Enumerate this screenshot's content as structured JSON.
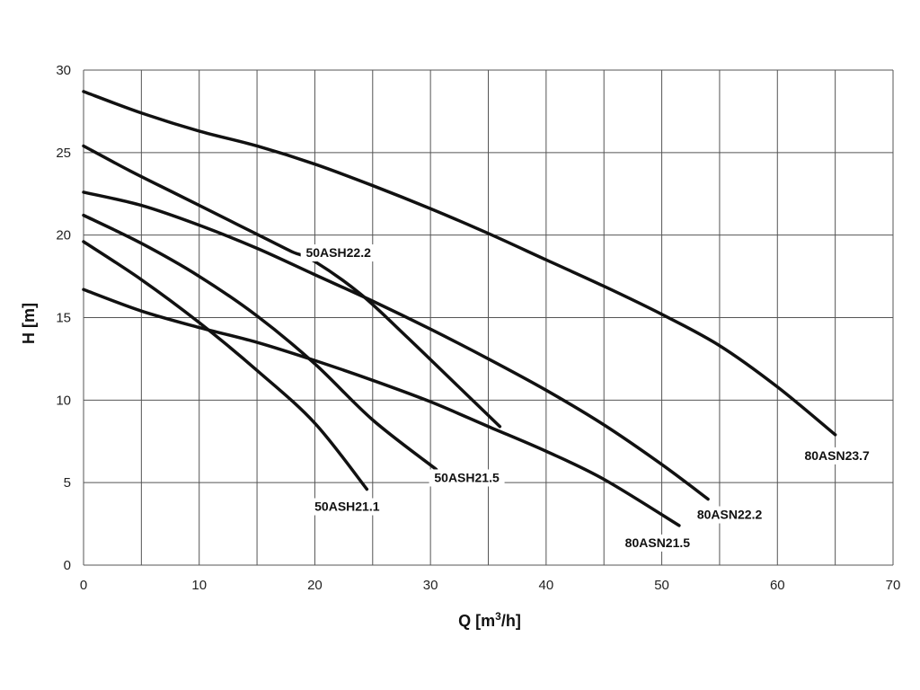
{
  "chart_data": {
    "type": "line",
    "xlabel": "Q [m³/h]",
    "xlabel_main": "Q [m",
    "xlabel_sup": "3",
    "xlabel_end": "/h]",
    "ylabel": "H [m]",
    "xlim": [
      0,
      70
    ],
    "ylim": [
      0,
      30
    ],
    "x_ticks": [
      0,
      10,
      20,
      30,
      40,
      50,
      60,
      70
    ],
    "y_ticks": [
      0,
      5,
      10,
      15,
      20,
      25,
      30
    ],
    "grid": true,
    "legend": "none",
    "series": [
      {
        "name": "80ASN23.7",
        "x": [
          0,
          5,
          10,
          15,
          20,
          25,
          30,
          35,
          40,
          45,
          50,
          55,
          60,
          65
        ],
        "y": [
          28.7,
          27.4,
          26.3,
          25.4,
          24.3,
          23.0,
          21.6,
          20.1,
          18.5,
          16.9,
          15.2,
          13.3,
          10.8,
          7.9
        ],
        "label": "80ASN23.7"
      },
      {
        "name": "50ASH22.2",
        "x": [
          0,
          4,
          8,
          12,
          16,
          18,
          20,
          24,
          28,
          32,
          36
        ],
        "y": [
          25.4,
          23.9,
          22.5,
          21.1,
          19.7,
          19.0,
          18.4,
          16.4,
          13.8,
          11.1,
          8.4
        ],
        "label": "50ASH22.2"
      },
      {
        "name": "80ASN22.2",
        "x": [
          0,
          5,
          10,
          15,
          20,
          25,
          30,
          35,
          40,
          45,
          50,
          54
        ],
        "y": [
          22.6,
          21.8,
          20.6,
          19.2,
          17.6,
          16.0,
          14.3,
          12.5,
          10.6,
          8.5,
          6.1,
          4.0
        ],
        "label": "80ASN22.2"
      },
      {
        "name": "50ASH21.5",
        "x": [
          0,
          5,
          10,
          15,
          20,
          25,
          30.5
        ],
        "y": [
          21.2,
          19.5,
          17.5,
          15.1,
          12.2,
          8.8,
          5.8
        ],
        "label": "50ASH21.5"
      },
      {
        "name": "50ASH21.1",
        "x": [
          0,
          5,
          10,
          15,
          20,
          24.5
        ],
        "y": [
          19.6,
          17.3,
          14.7,
          11.8,
          8.6,
          4.6
        ],
        "label": "50ASH21.1"
      },
      {
        "name": "80ASN21.5",
        "x": [
          0,
          5,
          10,
          15,
          20,
          25,
          30,
          35,
          40,
          45,
          51.5
        ],
        "y": [
          16.7,
          15.4,
          14.4,
          13.5,
          12.4,
          11.2,
          9.9,
          8.4,
          6.9,
          5.2,
          2.4
        ],
        "label": "80ASN21.5"
      }
    ]
  }
}
